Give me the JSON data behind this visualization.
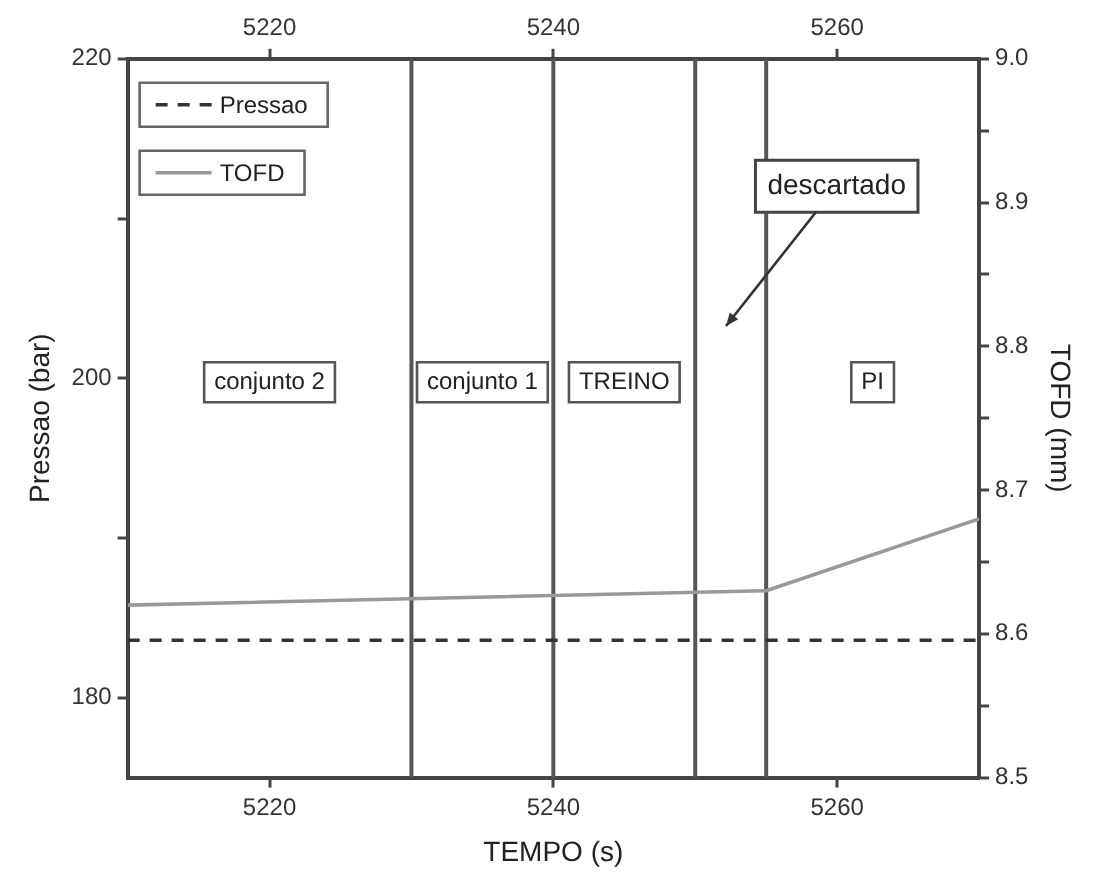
{
  "chart_data": {
    "type": "line",
    "xlabel": "TEMPO (s)",
    "ylabel": "Pressao (bar)",
    "y2label": "TOFD (mm)",
    "xlim": [
      5210,
      5270
    ],
    "xticks": [
      5220,
      5240,
      5260
    ],
    "x2lim": [
      5210,
      5270
    ],
    "x2ticks": [
      5220,
      5240,
      5260
    ],
    "ylim": [
      175,
      220
    ],
    "yticks": [
      180,
      {
        "value": 190,
        "label": null
      },
      200,
      {
        "value": 210,
        "label": null
      },
      220
    ],
    "y2lim": [
      8.5,
      9.0
    ],
    "y2ticks": [
      8.5,
      {
        "value": 8.55,
        "label": null
      },
      8.6,
      {
        "value": 8.65,
        "label": null
      },
      8.7,
      {
        "value": 8.75,
        "label": null
      },
      8.8,
      {
        "value": 8.85,
        "label": null
      },
      8.9,
      {
        "value": 8.95,
        "label": null
      },
      {
        "value": 9.0,
        "label": "9.0"
      }
    ],
    "grid": false,
    "legend": "top left",
    "marker": "none",
    "series": [
      {
        "name": "Pressao",
        "color": "#333333",
        "x": [
          5210,
          5270
        ],
        "values": [
          183.6,
          183.6
        ],
        "line_style": "dashed"
      },
      {
        "name": "TOFD",
        "color": "#999999",
        "x": [
          5210,
          5255,
          5270
        ],
        "values": [
          8.62,
          8.63,
          8.68
        ],
        "axis": "y2",
        "line_style": "solid"
      }
    ],
    "ref_lines": [
      {
        "axis": "x",
        "value": 5230,
        "color": "#555555"
      },
      {
        "axis": "x",
        "value": 5240,
        "color": "#555555"
      },
      {
        "axis": "x",
        "value": 5250,
        "color": "#555555"
      },
      {
        "axis": "x",
        "value": 5255,
        "color": "#555555"
      }
    ],
    "annotations": [
      "conjunto 2",
      "conjunto 1",
      "TREINO",
      "descartado",
      "PI"
    ]
  }
}
